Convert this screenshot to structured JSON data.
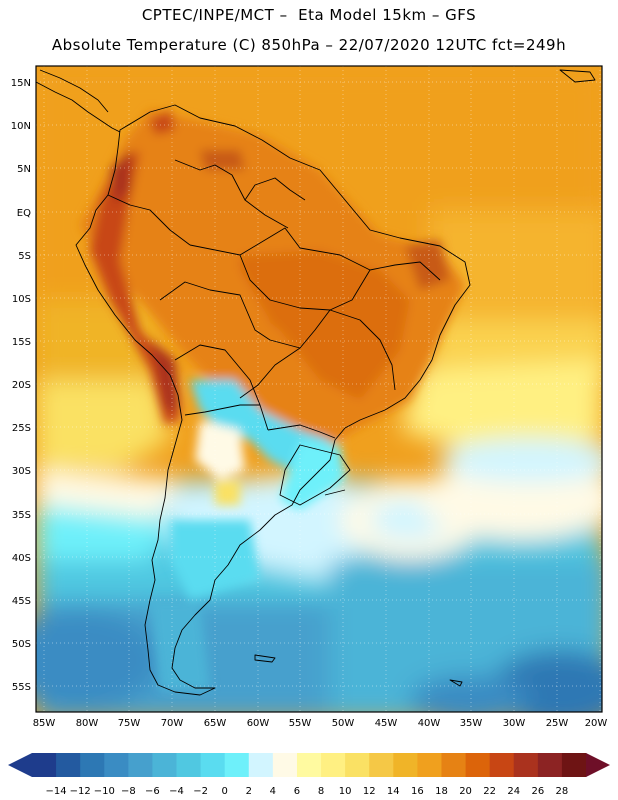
{
  "header": {
    "title_line1": "CPTEC/INPE/MCT –  Eta Model 15km – GFS",
    "title_line2": "Absolute Temperature (C) 850hPa – 22/07/2020 12UTC fct=249h"
  },
  "map": {
    "lat_labels": [
      "15N",
      "10N",
      "5N",
      "EQ",
      "5S",
      "10S",
      "15S",
      "20S",
      "25S",
      "30S",
      "35S",
      "40S",
      "45S",
      "50S",
      "55S"
    ],
    "lon_labels": [
      "85W",
      "80W",
      "75W",
      "70W",
      "65W",
      "60W",
      "55W",
      "50W",
      "45W",
      "40W",
      "35W",
      "30W",
      "25W",
      "20W"
    ]
  },
  "legend": {
    "labels": [
      "-14",
      "-12",
      "-10",
      "-8",
      "-6",
      "-4",
      "-2",
      "0",
      "2",
      "4",
      "6",
      "8",
      "10",
      "12",
      "14",
      "16",
      "18",
      "20",
      "22",
      "24",
      "26",
      "28"
    ],
    "colors": [
      "#1e3c8c",
      "#235aa0",
      "#2d78b4",
      "#3a8cc3",
      "#46a0cd",
      "#4bb4d7",
      "#50c8e1",
      "#5adcf0",
      "#6ef0fa",
      "#d2f5ff",
      "#fffae6",
      "#fffaa0",
      "#fff082",
      "#fae164",
      "#f5c846",
      "#f0b428",
      "#f0a01e",
      "#e68214",
      "#dc640a",
      "#c84614",
      "#aa321e",
      "#8c2323",
      "#6e1414"
    ],
    "arrow_left_color": "#1e3c8c",
    "arrow_right_color": "#6e0f28"
  }
}
